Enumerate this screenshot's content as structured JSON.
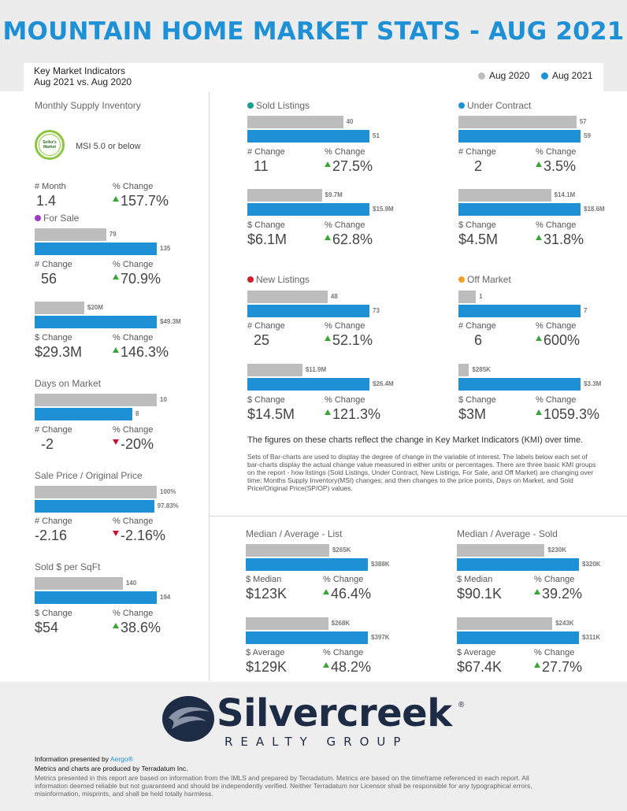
{
  "header": {
    "title": "MOUNTAIN HOME MARKET STATS - AUG 2021",
    "subtitle_line1": "Key Market Indicators",
    "subtitle_line2": "Aug 2021 vs. Aug 2020"
  },
  "legend": {
    "items": [
      {
        "label": "Aug 2020",
        "color": "#bdbdbd"
      },
      {
        "label": "Aug 2021",
        "color": "#1e90d6"
      }
    ]
  },
  "colors": {
    "prior": "#bdbdbd",
    "current": "#1e90d6",
    "up": "#3aa635",
    "down": "#c8102e"
  },
  "left": {
    "msi": {
      "title": "Monthly Supply Inventory",
      "badge_text": "Seller's Market",
      "note": "MSI 5.0 or below",
      "m1_label": "# Month",
      "m1_value": "1.4",
      "m2_label": "% Change",
      "m2_value": "157.7%",
      "m2_dir": "up"
    },
    "for_sale": {
      "title": "For Sale",
      "dot_color": "#9b3dc8",
      "count_2020": 79,
      "count_2021": 135,
      "count_2020_label": "79",
      "count_2021_label": "135",
      "c1_label": "# Change",
      "c1_value": "56",
      "c2_label": "% Change",
      "c2_value": "70.9%",
      "vol_2020": 20,
      "vol_2021": 49.3,
      "vol_2020_label": "$20M",
      "vol_2021_label": "$49.3M",
      "v1_label": "$ Change",
      "v1_value": "$29.3M",
      "v2_label": "% Change",
      "v2_value": "146.3%"
    },
    "dom": {
      "title": "Days on Market",
      "v_2020": 10,
      "v_2021": 8,
      "v_2020_label": "10",
      "v_2021_label": "8",
      "c1_label": "# Change",
      "c1_value": "-2",
      "c2_label": "% Change",
      "c2_value": "-20%",
      "c2_dir": "down"
    },
    "sp_op": {
      "title": "Sale Price / Original Price",
      "v_2020": 100,
      "v_2021": 97.83,
      "v_2020_label": "100%",
      "v_2021_label": "97.83%",
      "c1_label": "# Change",
      "c1_value": "-2.16",
      "c2_label": "% Change",
      "c2_value": "-2.16%",
      "c2_dir": "down"
    },
    "sqft": {
      "title": "Sold $ per SqFt",
      "v_2020": 140,
      "v_2021": 194,
      "v_2020_label": "140",
      "v_2021_label": "194",
      "c1_label": "$ Change",
      "c1_value": "$54",
      "c2_label": "% Change",
      "c2_value": "38.6%"
    }
  },
  "sold": {
    "title": "Sold Listings",
    "dot_color": "#1a9e8f",
    "count_2020": 40,
    "count_2021": 51,
    "count_2020_label": "40",
    "count_2021_label": "51",
    "c1_label": "# Change",
    "c1_value": "11",
    "c2_label": "% Change",
    "c2_value": "27.5%",
    "vol_2020": 9.7,
    "vol_2021": 15.9,
    "vol_2020_label": "$9.7M",
    "vol_2021_label": "$15.9M",
    "v1_label": "$ Change",
    "v1_value": "$6.1M",
    "v2_label": "% Change",
    "v2_value": "62.8%"
  },
  "under_contract": {
    "title": "Under Contract",
    "dot_color": "#1e90d6",
    "count_2020": 57,
    "count_2021": 59,
    "count_2020_label": "57",
    "count_2021_label": "59",
    "c1_label": "# Change",
    "c1_value": "2",
    "c2_label": "% Change",
    "c2_value": "3.5%",
    "vol_2020": 14.1,
    "vol_2021": 18.6,
    "vol_2020_label": "$14.1M",
    "vol_2021_label": "$18.6M",
    "v1_label": "$ Change",
    "v1_value": "$4.5M",
    "v2_label": "% Change",
    "v2_value": "31.8%"
  },
  "new_listings": {
    "title": "New Listings",
    "dot_color": "#d0212b",
    "count_2020": 48,
    "count_2021": 73,
    "count_2020_label": "48",
    "count_2021_label": "73",
    "c1_label": "# Change",
    "c1_value": "25",
    "c2_label": "% Change",
    "c2_value": "52.1%",
    "vol_2020": 11.9,
    "vol_2021": 26.4,
    "vol_2020_label": "$11.9M",
    "vol_2021_label": "$26.4M",
    "v1_label": "$ Change",
    "v1_value": "$14.5M",
    "v2_label": "% Change",
    "v2_value": "121.3%"
  },
  "off_market": {
    "title": "Off Market",
    "dot_color": "#f2a12e",
    "count_2020": 1,
    "count_2021": 7,
    "count_2020_label": "1",
    "count_2021_label": "7",
    "c1_label": "# Change",
    "c1_value": "6",
    "c2_label": "% Change",
    "c2_value": "600%",
    "vol_2020": 0.285,
    "vol_2021": 3.3,
    "vol_2020_label": "$285K",
    "vol_2021_label": "$3.3M",
    "v1_label": "$ Change",
    "v1_value": "$3M",
    "v2_label": "% Change",
    "v2_value": "1059.3%"
  },
  "explain": {
    "headline": "The figures on these charts reflect the change in Key Market Indicators (KMI) over time.",
    "body": "Sets of Bar-charts are used to display the degree of change in the variable of interest. The labels below each set of bar-charts display the actual change value measured in either units or percentages. There are three basic KMI groups on the report - how listings (Sold Listings, Under Contract, New Listings, For Sale, and Off Market) are changing over time; Months Supply Inventory(MSI) changes; and then changes to the price points, Days on Market, and Sold Price/Original Price(SP/OP) values."
  },
  "median_list": {
    "title": "Median / Average - List",
    "med_2020": 265,
    "med_2021": 388,
    "med_2020_label": "$265K",
    "med_2021_label": "$388K",
    "m1_label": "$ Median",
    "m1_value": "$123K",
    "m2_label": "% Change",
    "m2_value": "46.4%",
    "avg_2020": 268,
    "avg_2021": 397,
    "avg_2020_label": "$268K",
    "avg_2021_label": "$397K",
    "a1_label": "$ Average",
    "a1_value": "$129K",
    "a2_label": "% Change",
    "a2_value": "48.2%"
  },
  "median_sold": {
    "title": "Median / Average - Sold",
    "med_2020": 230,
    "med_2021": 320,
    "med_2020_label": "$230K",
    "med_2021_label": "$320K",
    "m1_label": "$ Median",
    "m1_value": "$90.1K",
    "m2_label": "% Change",
    "m2_value": "39.2%",
    "avg_2020": 243,
    "avg_2021": 311,
    "avg_2020_label": "$243K",
    "avg_2021_label": "$311K",
    "a1_label": "$ Average",
    "a1_value": "$67.4K",
    "a2_label": "% Change",
    "a2_value": "27.7%"
  },
  "footer": {
    "logo_name": "Silvercreek",
    "logo_reg": "®",
    "logo_sub": "REALTY GROUP",
    "info_prefix": "Information presented by ",
    "info_link": "Aergo®",
    "metrics_line": "Metrics and charts are produced by Terradatum Inc.",
    "legal": "Metrics presented in this report are based on information from the IMLS and prepared by Terradatum. Metrics are based on the timeframe referenced in each report. All information deemed reliable but not guaranteed and should be independently verified. Neither Terradatum nor Licensor shall be responsible for any typographical errors, misinformation, misprints, and shall be held totally harmless."
  }
}
